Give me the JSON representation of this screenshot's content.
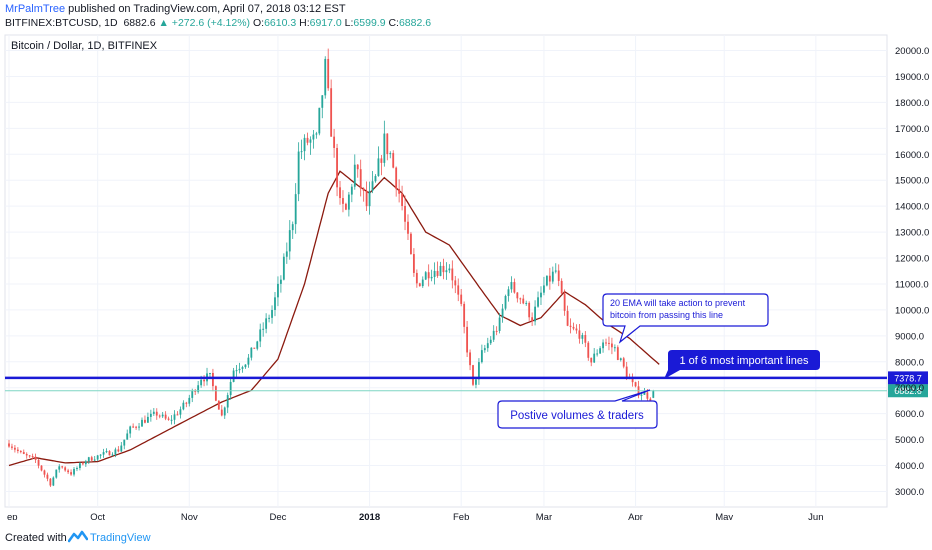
{
  "header": {
    "author": "MrPalmTree",
    "published": " published on TradingView.com, April 07, 2018 03:12 EST",
    "symbol": "BITFINEX:BTCUSD, 1D",
    "last": "6882.6",
    "change": "▲ +272.6 (+4.12%)",
    "o_label": "O:",
    "o": "6610.3",
    "h_label": "H:",
    "h": "6917.0",
    "l_label": "L:",
    "l": "6599.9",
    "c_label": "C:",
    "c": "6882.6"
  },
  "footer": {
    "created_with": "Created with",
    "brand": "TradingView"
  },
  "colors": {
    "up": "#26a69a",
    "down": "#ef5350",
    "ema": "#8b1a0f",
    "hline": "#1a1ad6",
    "price_line": "#7ed6c4",
    "callout_border": "#1a1ad6",
    "label_bg": "#1a1ad6",
    "price_badge": "#26a69a"
  },
  "chart_data": {
    "type": "candlestick",
    "title": "Bitcoin / Dollar, 1D, BITFINEX",
    "x_ticks": [
      "ep",
      "Oct",
      "Nov",
      "Dec",
      "2018",
      "Feb",
      "Mar",
      "Apr",
      "May",
      "Jun"
    ],
    "y_ticks": [
      "3000.0",
      "4000.0",
      "5000.0",
      "6000.0",
      "7000.0",
      "8000.0",
      "9000.0",
      "10000.0",
      "11000.0",
      "12000.0",
      "13000.0",
      "14000.0",
      "15000.0",
      "16000.0",
      "17000.0",
      "18000.0",
      "19000.0",
      "20000.0"
    ],
    "ylim": [
      2400,
      20600
    ],
    "grid": true,
    "close_anchors": [
      [
        "2017-09-01",
        4850
      ],
      [
        "2017-09-05",
        4450
      ],
      [
        "2017-09-10",
        4200
      ],
      [
        "2017-09-15",
        3300
      ],
      [
        "2017-09-18",
        4000
      ],
      [
        "2017-09-22",
        3700
      ],
      [
        "2017-09-27",
        4200
      ],
      [
        "2017-10-02",
        4400
      ],
      [
        "2017-10-08",
        4600
      ],
      [
        "2017-10-12",
        5400
      ],
      [
        "2017-10-16",
        5700
      ],
      [
        "2017-10-21",
        6000
      ],
      [
        "2017-10-25",
        5700
      ],
      [
        "2017-10-31",
        6400
      ],
      [
        "2017-11-05",
        7400
      ],
      [
        "2017-11-08",
        7400
      ],
      [
        "2017-11-12",
        5900
      ],
      [
        "2017-11-16",
        7700
      ],
      [
        "2017-11-21",
        8100
      ],
      [
        "2017-11-26",
        9300
      ],
      [
        "2017-11-29",
        10000
      ],
      [
        "2017-12-02",
        11200
      ],
      [
        "2017-12-06",
        13500
      ],
      [
        "2017-12-08",
        16000
      ],
      [
        "2017-12-11",
        16500
      ],
      [
        "2017-12-14",
        16500
      ],
      [
        "2017-12-17",
        19300
      ],
      [
        "2017-12-19",
        17000
      ],
      [
        "2017-12-22",
        14000
      ],
      [
        "2017-12-24",
        13800
      ],
      [
        "2017-12-27",
        15500
      ],
      [
        "2017-12-31",
        14000
      ],
      [
        "2018-01-03",
        15000
      ],
      [
        "2018-01-06",
        16500
      ],
      [
        "2018-01-08",
        16000
      ],
      [
        "2018-01-12",
        14000
      ],
      [
        "2018-01-16",
        11300
      ],
      [
        "2018-01-17",
        11000
      ],
      [
        "2018-01-21",
        11500
      ],
      [
        "2018-01-28",
        11700
      ],
      [
        "2018-02-01",
        10000
      ],
      [
        "2018-02-05",
        7000
      ],
      [
        "2018-02-08",
        8300
      ],
      [
        "2018-02-14",
        9500
      ],
      [
        "2018-02-17",
        11000
      ],
      [
        "2018-02-21",
        10500
      ],
      [
        "2018-02-25",
        9700
      ],
      [
        "2018-03-01",
        10900
      ],
      [
        "2018-03-05",
        11500
      ],
      [
        "2018-03-09",
        9300
      ],
      [
        "2018-03-13",
        9100
      ],
      [
        "2018-03-17",
        8000
      ],
      [
        "2018-03-21",
        8800
      ],
      [
        "2018-03-25",
        8500
      ],
      [
        "2018-03-29",
        7500
      ],
      [
        "2018-04-01",
        6900
      ],
      [
        "2018-04-05",
        6700
      ],
      [
        "2018-04-06",
        6610
      ],
      [
        "2018-04-07",
        6882.6
      ]
    ],
    "ema_anchors": [
      [
        "2017-09-01",
        4000
      ],
      [
        "2017-09-10",
        4300
      ],
      [
        "2017-09-20",
        4100
      ],
      [
        "2017-10-01",
        4150
      ],
      [
        "2017-10-12",
        4600
      ],
      [
        "2017-10-22",
        5200
      ],
      [
        "2017-11-01",
        5800
      ],
      [
        "2017-11-12",
        6450
      ],
      [
        "2017-11-22",
        6900
      ],
      [
        "2017-12-01",
        8100
      ],
      [
        "2017-12-10",
        11000
      ],
      [
        "2017-12-18",
        14500
      ],
      [
        "2017-12-22",
        15350
      ],
      [
        "2017-12-28",
        14800
      ],
      [
        "2018-01-01",
        14500
      ],
      [
        "2018-01-06",
        15100
      ],
      [
        "2018-01-12",
        14500
      ],
      [
        "2018-01-20",
        13000
      ],
      [
        "2018-01-28",
        12500
      ],
      [
        "2018-02-07",
        10900
      ],
      [
        "2018-02-14",
        9800
      ],
      [
        "2018-02-21",
        9400
      ],
      [
        "2018-02-28",
        9700
      ],
      [
        "2018-03-08",
        10700
      ],
      [
        "2018-03-15",
        10200
      ],
      [
        "2018-03-22",
        9500
      ],
      [
        "2018-03-30",
        8900
      ],
      [
        "2018-04-05",
        8300
      ],
      [
        "2018-04-09",
        7900
      ]
    ],
    "horizontal_lines": [
      {
        "price": 7378.7,
        "label": "7378.7"
      },
      {
        "price": 6882.6,
        "label": "6882.6"
      }
    ],
    "annotations": [
      {
        "text": "1 of 6 most important lines",
        "style": "label"
      },
      {
        "text": "20 EMA will take action to prevent",
        "text2": "bitcoin from passing this line",
        "style": "callout"
      },
      {
        "text": "Postive volumes & traders",
        "style": "callout"
      }
    ]
  }
}
